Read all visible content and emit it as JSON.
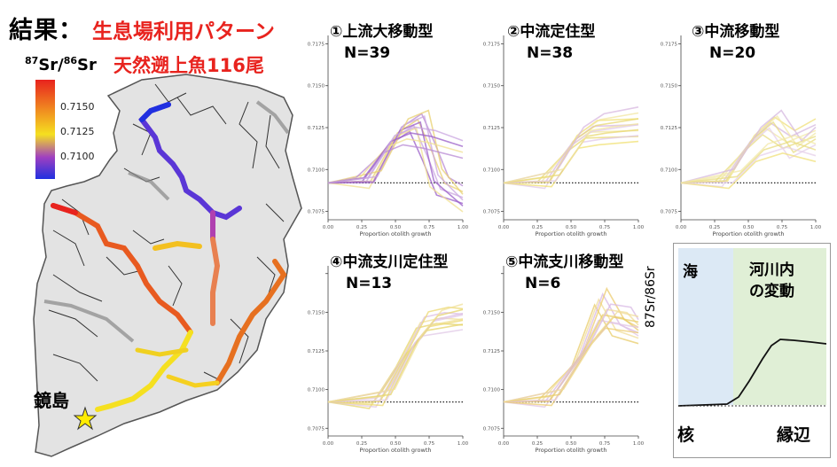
{
  "header": {
    "result_label": "結果：",
    "pattern_label": "生息場利用パターン",
    "isotope_label_num": "87",
    "isotope_label_sr1": "Sr/",
    "isotope_label_den": "86",
    "isotope_label_sr2": "Sr",
    "fish_label": "天然遡上魚116尾"
  },
  "map": {
    "place_label": "鏡島",
    "colorbar_ticks": [
      "0.7150",
      "0.7125",
      "0.7100"
    ],
    "colors": {
      "high": "#e8231e",
      "mid_high": "#f08a20",
      "mid": "#f5e020",
      "mid_low": "#a040c0",
      "low": "#2030e0"
    }
  },
  "panels": [
    {
      "id": "1",
      "title": "①上流大移動型",
      "n": "N=39"
    },
    {
      "id": "2",
      "title": "②中流定住型",
      "n": "N=38"
    },
    {
      "id": "3",
      "title": "③中流移動型",
      "n": "N=20"
    },
    {
      "id": "4",
      "title": "④中流支川定住型",
      "n": "N=13"
    },
    {
      "id": "5",
      "title": "⑤中流支川移動型",
      "n": "N=6"
    }
  ],
  "schema": {
    "sea_label": "海",
    "river_label_1": "河川内",
    "river_label_2": "の変動",
    "ylabel": "87Sr/86Sr",
    "core_label": "核",
    "edge_label": "縁辺"
  },
  "chart_data": [
    {
      "type": "line",
      "panel": "1",
      "xlabel": "Proportion otolith growth",
      "x_ticks": [
        "0.00",
        "0.25",
        "0.50",
        "0.75",
        "1.00"
      ],
      "y_ticks": [
        "0.7175",
        "0.7150",
        "0.7125",
        "0.7100",
        "0.7075"
      ],
      "xlim": [
        0,
        1
      ],
      "ylim": [
        0.707,
        0.718
      ],
      "baseline": 0.7092,
      "series": [
        {
          "values": [
            [
              0,
              0.7092
            ],
            [
              0.3,
              0.7093
            ],
            [
              0.5,
              0.712
            ],
            [
              0.65,
              0.7128
            ],
            [
              0.75,
              0.711
            ],
            [
              0.85,
              0.709
            ],
            [
              1,
              0.7085
            ]
          ]
        },
        {
          "values": [
            [
              0,
              0.7092
            ],
            [
              0.35,
              0.7094
            ],
            [
              0.55,
              0.7125
            ],
            [
              0.7,
              0.713
            ],
            [
              0.8,
              0.7095
            ],
            [
              1,
              0.708
            ]
          ]
        },
        {
          "values": [
            [
              0,
              0.7092
            ],
            [
              0.25,
              0.7095
            ],
            [
              0.45,
              0.7115
            ],
            [
              0.6,
              0.712
            ],
            [
              0.75,
              0.7118
            ],
            [
              1,
              0.7112
            ]
          ]
        }
      ]
    },
    {
      "type": "line",
      "panel": "2",
      "xlabel": "Proportion otolith growth",
      "x_ticks": [
        "0.00",
        "0.25",
        "0.50",
        "0.75",
        "1.00"
      ],
      "y_ticks": [
        "0.7175",
        "0.7150",
        "0.7125",
        "0.7100",
        "0.7075"
      ],
      "xlim": [
        0,
        1
      ],
      "ylim": [
        0.707,
        0.718
      ],
      "baseline": 0.7092,
      "series": [
        {
          "values": [
            [
              0,
              0.7092
            ],
            [
              0.3,
              0.7093
            ],
            [
              0.5,
              0.7115
            ],
            [
              0.65,
              0.7124
            ],
            [
              1,
              0.7125
            ]
          ]
        },
        {
          "values": [
            [
              0,
              0.7092
            ],
            [
              0.35,
              0.7094
            ],
            [
              0.55,
              0.712
            ],
            [
              0.7,
              0.7128
            ],
            [
              1,
              0.7132
            ]
          ]
        },
        {
          "values": [
            [
              0,
              0.7092
            ],
            [
              0.4,
              0.7095
            ],
            [
              0.6,
              0.7118
            ],
            [
              0.75,
              0.712
            ],
            [
              1,
              0.7122
            ]
          ]
        }
      ]
    },
    {
      "type": "line",
      "panel": "3",
      "xlabel": "Proportion otolith growth",
      "x_ticks": [
        "0.00",
        "0.25",
        "0.50",
        "0.75",
        "1.00"
      ],
      "y_ticks": [
        "0.7175",
        "0.7150",
        "0.7125",
        "0.7100",
        "0.7075"
      ],
      "xlim": [
        0,
        1
      ],
      "ylim": [
        0.707,
        0.718
      ],
      "baseline": 0.7092,
      "series": [
        {
          "values": [
            [
              0,
              0.7092
            ],
            [
              0.3,
              0.7093
            ],
            [
              0.5,
              0.7115
            ],
            [
              0.65,
              0.7126
            ],
            [
              0.8,
              0.7118
            ],
            [
              1,
              0.7125
            ]
          ]
        },
        {
          "values": [
            [
              0,
              0.7092
            ],
            [
              0.35,
              0.7095
            ],
            [
              0.55,
              0.712
            ],
            [
              0.7,
              0.713
            ],
            [
              0.85,
              0.7112
            ],
            [
              1,
              0.712
            ]
          ]
        },
        {
          "values": [
            [
              0,
              0.7092
            ],
            [
              0.4,
              0.7094
            ],
            [
              0.6,
              0.711
            ],
            [
              0.8,
              0.7115
            ],
            [
              1,
              0.711
            ]
          ]
        }
      ]
    },
    {
      "type": "line",
      "panel": "4",
      "xlabel": "Proportion otolith growth",
      "x_ticks": [
        "0.00",
        "0.25",
        "0.50",
        "0.75",
        "1.00"
      ],
      "y_ticks": [
        "",
        "0.7150",
        "0.7125",
        "0.7100",
        "0.7075"
      ],
      "xlim": [
        0,
        1
      ],
      "ylim": [
        0.707,
        0.718
      ],
      "baseline": 0.7092,
      "series": [
        {
          "values": [
            [
              0,
              0.7092
            ],
            [
              0.35,
              0.7093
            ],
            [
              0.55,
              0.712
            ],
            [
              0.7,
              0.7145
            ],
            [
              0.85,
              0.7148
            ],
            [
              1,
              0.7147
            ]
          ]
        },
        {
          "values": [
            [
              0,
              0.7092
            ],
            [
              0.4,
              0.7094
            ],
            [
              0.6,
              0.7125
            ],
            [
              0.75,
              0.714
            ],
            [
              1,
              0.7144
            ]
          ]
        },
        {
          "values": [
            [
              0,
              0.7092
            ],
            [
              0.45,
              0.7095
            ],
            [
              0.65,
              0.713
            ],
            [
              0.8,
              0.7146
            ],
            [
              1,
              0.715
            ]
          ]
        }
      ]
    },
    {
      "type": "line",
      "panel": "5",
      "xlabel": "Proportion otolith growth",
      "x_ticks": [
        "0.00",
        "0.25",
        "0.50",
        "0.75",
        "1.00"
      ],
      "y_ticks": [
        "",
        "0.7150",
        "0.7125",
        "0.7100",
        "0.7075"
      ],
      "xlim": [
        0,
        1
      ],
      "ylim": [
        0.707,
        0.718
      ],
      "baseline": 0.7092,
      "series": [
        {
          "values": [
            [
              0,
              0.7092
            ],
            [
              0.3,
              0.7093
            ],
            [
              0.55,
              0.712
            ],
            [
              0.72,
              0.716
            ],
            [
              0.85,
              0.714
            ],
            [
              1,
              0.7135
            ]
          ]
        },
        {
          "values": [
            [
              0,
              0.7092
            ],
            [
              0.35,
              0.7094
            ],
            [
              0.6,
              0.7125
            ],
            [
              0.75,
              0.715
            ],
            [
              0.9,
              0.7148
            ],
            [
              1,
              0.714
            ]
          ]
        },
        {
          "values": [
            [
              0,
              0.7092
            ],
            [
              0.4,
              0.7095
            ],
            [
              0.65,
              0.713
            ],
            [
              0.8,
              0.7145
            ],
            [
              1,
              0.7142
            ]
          ]
        }
      ]
    }
  ]
}
